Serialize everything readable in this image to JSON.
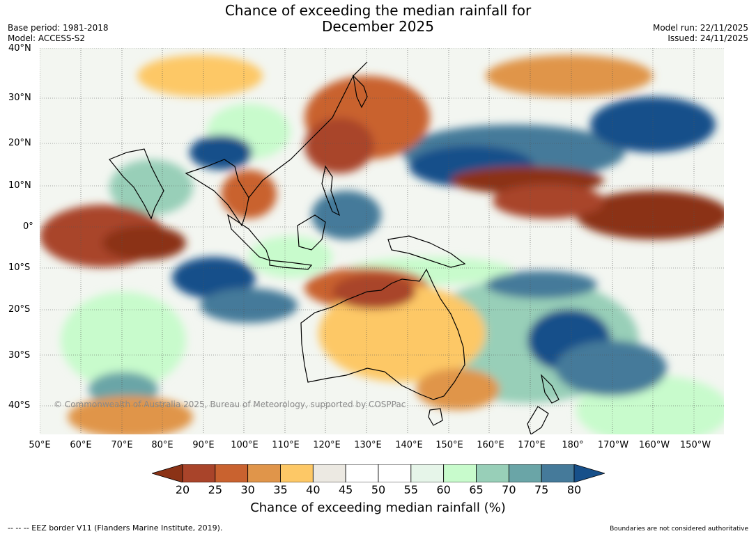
{
  "title_line1": "Chance of exceeding the median rainfall for",
  "title_line2": "December 2025",
  "base_period": "Base period: 1981-2018",
  "model": "Model: ACCESS-S2",
  "model_run": "Model run: 22/11/2025",
  "issued": "Issued: 24/11/2025",
  "lat_labels": [
    "40°N",
    "30°N",
    "20°N",
    "10°N",
    "0°",
    "10°S",
    "20°S",
    "30°S",
    "40°S"
  ],
  "lon_labels": [
    "50°E",
    "60°E",
    "70°E",
    "80°E",
    "90°E",
    "100°E",
    "110°E",
    "120°E",
    "130°E",
    "140°E",
    "150°E",
    "160°E",
    "170°E",
    "180°",
    "170°W",
    "160°W",
    "150°W"
  ],
  "copyright": "© Commonwealth of Australia 2025, Bureau of Meteorology, supported by COSPPac",
  "colorbar": {
    "ticks": [
      "20",
      "25",
      "30",
      "35",
      "40",
      "45",
      "50",
      "55",
      "60",
      "65",
      "70",
      "75",
      "80"
    ],
    "colors": [
      "#8b3216",
      "#a9442a",
      "#c9622f",
      "#e0954a",
      "#fdc866",
      "#ece9e2",
      "#ffffff",
      "#ffffff",
      "#e6f5e9",
      "#c8fbcc",
      "#98cfb8",
      "#6aa5a7",
      "#457a9a",
      "#17508a"
    ],
    "label": "Chance of exceeding median rainfall (%)"
  },
  "footer_left": "--  --  -- EEZ border V11 (Flanders Marine Institute, 2019).",
  "footer_right": "Boundaries are not considered authoritative"
}
